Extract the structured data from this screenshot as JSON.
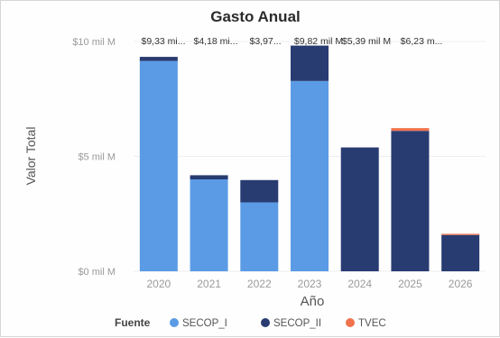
{
  "chart_data": {
    "type": "bar",
    "stacked": true,
    "title": "Gasto Anual",
    "xlabel": "Año",
    "ylabel": "Valor Total",
    "categories": [
      "2020",
      "2021",
      "2022",
      "2023",
      "2024",
      "2025",
      "2026"
    ],
    "yticks": [
      {
        "value": 0,
        "label": "$0 mil M"
      },
      {
        "value": 5,
        "label": "$5 mil M"
      },
      {
        "value": 10,
        "label": "$10 mil M"
      }
    ],
    "ylim": [
      0,
      10
    ],
    "series": [
      {
        "name": "SECOP_I",
        "color": "#5b9be6",
        "values": [
          9.15,
          4.0,
          3.0,
          8.28,
          0,
          0,
          0
        ]
      },
      {
        "name": "SECOP_II",
        "color": "#283c72",
        "values": [
          0.18,
          0.18,
          0.97,
          1.54,
          5.39,
          6.11,
          1.58
        ]
      },
      {
        "name": "TVEC",
        "color": "#f0734d",
        "values": [
          0,
          0,
          0,
          0,
          0,
          0.12,
          0.05
        ]
      }
    ],
    "data_labels": [
      "$9,33 mi...",
      "$4,18 mi...",
      "$3,97...",
      "$9,82 mil M",
      "$5,39 mil M",
      "$6,23 m..."
    ],
    "legend": {
      "title": "Fuente",
      "placement": "bottom"
    },
    "grid": true
  }
}
